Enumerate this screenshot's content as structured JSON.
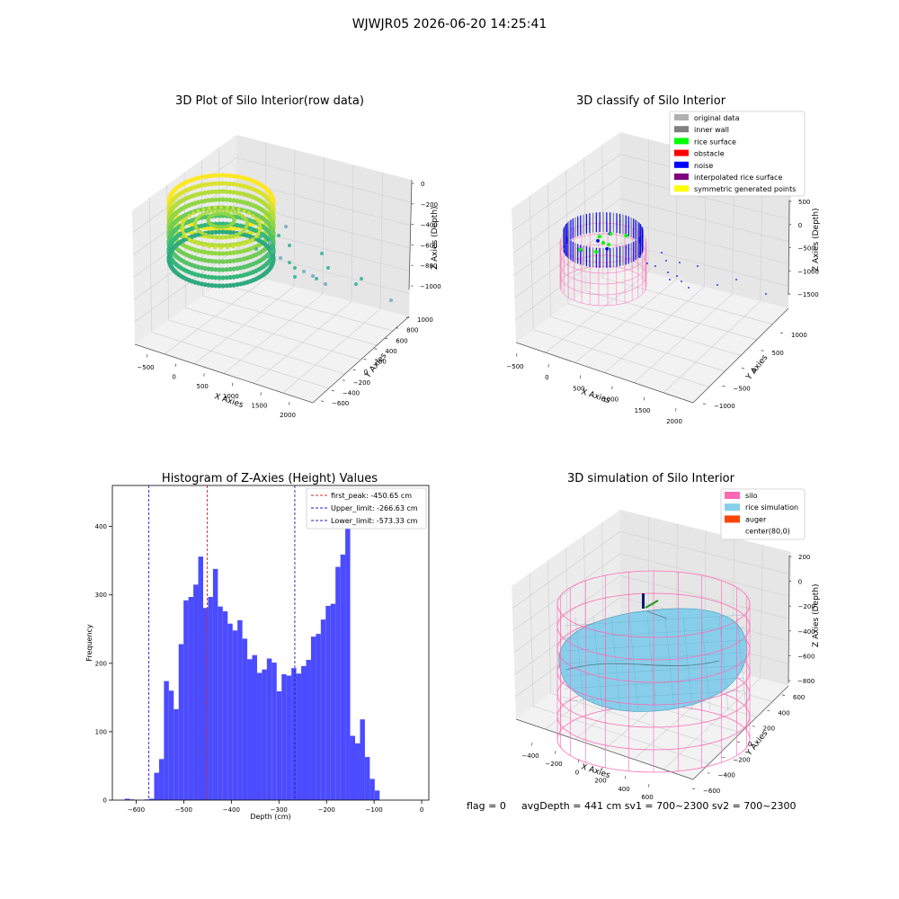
{
  "suptitle": "WJWJR05 2026-06-20 14:25:41",
  "footer": {
    "flag": "flag = 0",
    "metrics": "avgDepth = 441 cm  sv1 = 700~2300  sv2 = 700~2300"
  },
  "colors": {
    "hist_bar": "#4b4bff",
    "peak_line": "#d62728",
    "limit_line": "#1f1fbf",
    "silo": "#ff69b4",
    "rice_simulation": "#87ceeb",
    "auger": "#ff4500"
  },
  "panels": {
    "raw": {
      "title": "3D Plot of Silo Interior(row data)",
      "xlabel": "X Axies",
      "ylabel": "Y Axies",
      "zlabel": "Z Axies (Depth)",
      "xticks": [
        "−500",
        "0",
        "500",
        "1000",
        "1500",
        "2000"
      ],
      "yticks": [
        "−600",
        "−400",
        "−200",
        "0",
        "200",
        "400",
        "600",
        "800",
        "1000"
      ],
      "zticks": [
        "0",
        "−200",
        "−400",
        "−600",
        "−800",
        "−1000"
      ]
    },
    "classify": {
      "title": "3D classify of Silo Interior",
      "xlabel": "X Axies",
      "ylabel": "Y Axies",
      "zlabel": "Z Axies (Depth)",
      "xticks": [
        "−500",
        "0",
        "500",
        "1000",
        "1500",
        "2000"
      ],
      "yticks": [
        "−1000",
        "−500",
        "0",
        "500",
        "1000"
      ],
      "zticks": [
        "500",
        "0",
        "−500",
        "−1000",
        "−1500"
      ],
      "legend": [
        {
          "label": "original data",
          "color": "#b0b0b0"
        },
        {
          "label": "inner wall",
          "color": "#808080"
        },
        {
          "label": "rice surface",
          "color": "#00ff00"
        },
        {
          "label": "obstacle",
          "color": "#ff0000"
        },
        {
          "label": "noise",
          "color": "#0000ff"
        },
        {
          "label": "interpolated rice surface",
          "color": "#800080"
        },
        {
          "label": "symmetric generated points",
          "color": "#ffff00"
        }
      ]
    },
    "simulation": {
      "title": "3D simulation of Silo Interior",
      "xlabel": "X Axies",
      "ylabel": "Y Axies",
      "zlabel": "Z Axies (Depth)",
      "xticks": [
        "−400",
        "−200",
        "0",
        "200",
        "400",
        "600"
      ],
      "yticks": [
        "−600",
        "−400",
        "−200",
        "0",
        "200",
        "400",
        "600"
      ],
      "zticks": [
        "200",
        "0",
        "−200",
        "−400",
        "−600",
        "−800"
      ],
      "legend": [
        {
          "label": "silo",
          "color": "#ff69b4"
        },
        {
          "label": "rice simulation",
          "color": "#87ceeb"
        },
        {
          "label": "auger",
          "color": "#ff4500"
        },
        {
          "label": "center(80,0)",
          "color": ""
        }
      ]
    }
  },
  "chart_data": {
    "type": "bar",
    "title": "Histogram of Z-Axies (Height) Values",
    "xlabel": "Depth (cm)",
    "ylabel": "Frequency",
    "xlim": [
      -650,
      15
    ],
    "ylim": [
      0,
      460
    ],
    "xticks": [
      -600,
      -500,
      -400,
      -300,
      -200,
      -100,
      0
    ],
    "yticks": [
      0,
      100,
      200,
      300,
      400
    ],
    "bin_width": 10.3,
    "bins_start": [
      -624,
      -613.7,
      -603.4,
      -593.1,
      -582.8,
      -572.5,
      -562.2,
      -551.9,
      -541.6,
      -531.3,
      -521,
      -510.7,
      -500.4,
      -490.1,
      -479.8,
      -469.5,
      -459.2,
      -448.9,
      -438.6,
      -428.3,
      -418,
      -407.7,
      -397.4,
      -387.1,
      -376.8,
      -366.5,
      -356.2,
      -345.9,
      -335.6,
      -325.3,
      -315,
      -304.7,
      -294.4,
      -284.1,
      -273.8,
      -263.5,
      -253.2,
      -242.9,
      -232.6,
      -222.3,
      -212,
      -201.7,
      -191.4,
      -181.1,
      -170.8,
      -160.5,
      -150.2,
      -139.9,
      -129.6,
      -119.3,
      -109,
      -98.7,
      -88.4,
      -78.1,
      -67.8,
      -57.5,
      -47.2,
      -36.9,
      -26.4,
      -16.2
    ],
    "frequencies": [
      2,
      1,
      0,
      0,
      1,
      2,
      40,
      60,
      174,
      160,
      133,
      228,
      292,
      297,
      315,
      356,
      281,
      297,
      338,
      283,
      276,
      258,
      248,
      263,
      236,
      206,
      212,
      186,
      191,
      207,
      201,
      159,
      184,
      182,
      193,
      185,
      196,
      205,
      239,
      243,
      264,
      284,
      287,
      341,
      359,
      418,
      94,
      83,
      118,
      63,
      31,
      14,
      0,
      0,
      0,
      0,
      0,
      0,
      0,
      0
    ],
    "vlines": [
      {
        "label": "first_peak: -450.65 cm",
        "x": -450.65,
        "style": "peak"
      },
      {
        "label": "Upper_limit: -266.63 cm",
        "x": -266.63,
        "style": "limit"
      },
      {
        "label": "Lower_limit: -573.33 cm",
        "x": -573.33,
        "style": "limit"
      }
    ]
  }
}
